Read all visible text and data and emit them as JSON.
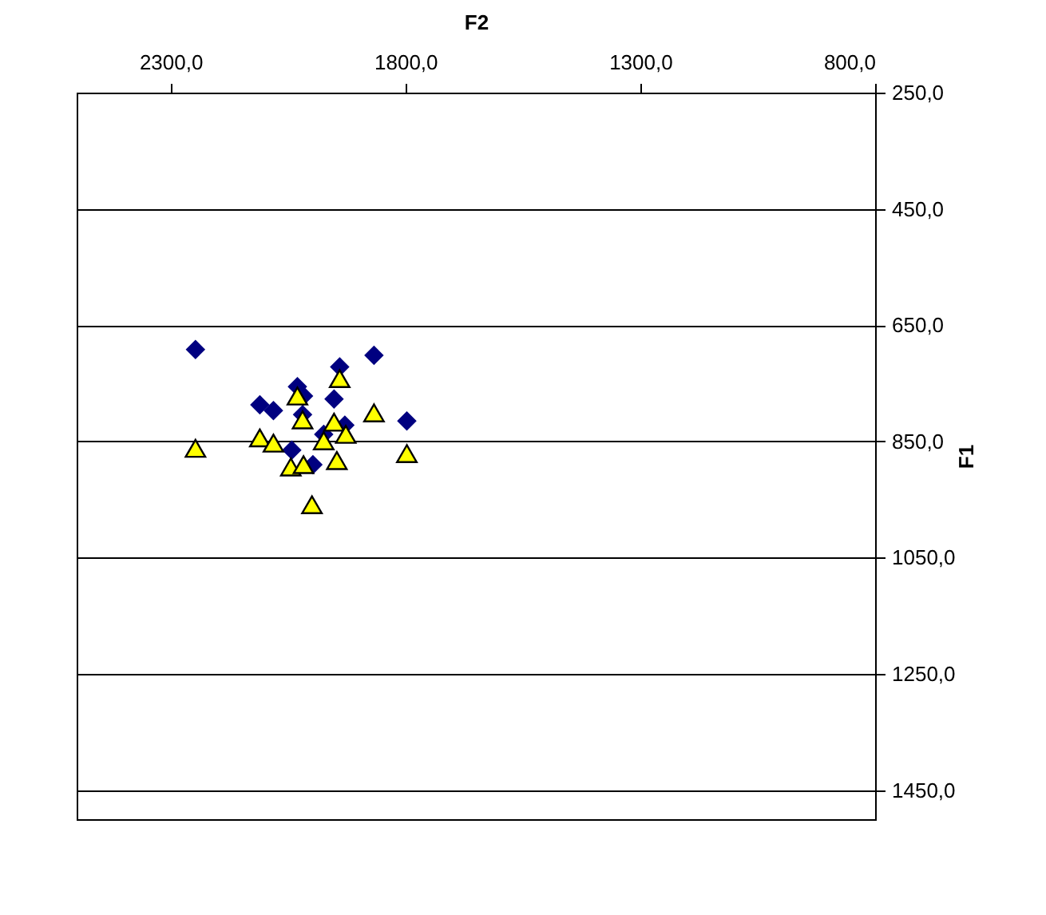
{
  "chart_data": {
    "type": "scatter",
    "xlabel": "F2",
    "ylabel": "F1",
    "xlim": [
      2500,
      800
    ],
    "xticks": [
      {
        "value": 2300,
        "label": "2300,0"
      },
      {
        "value": 1800,
        "label": "1800,0"
      },
      {
        "value": 1300,
        "label": "1300,0"
      },
      {
        "value": 800,
        "label": "800,0"
      }
    ],
    "ylim": [
      1500,
      250
    ],
    "yticks": [
      {
        "value": 250,
        "label": "250,0"
      },
      {
        "value": 450,
        "label": "450,0"
      },
      {
        "value": 650,
        "label": "650,0"
      },
      {
        "value": 850,
        "label": "850,0"
      },
      {
        "value": 1050,
        "label": "1050,0"
      },
      {
        "value": 1250,
        "label": "1250,0"
      },
      {
        "value": 1450,
        "label": "1450,0"
      }
    ],
    "grid": "y",
    "series": [
      {
        "marker": "diamond",
        "color": "#000080",
        "x": [
          2247,
          1867,
          1940,
          2030,
          1952,
          2110,
          2081,
          2019,
          1929,
          1797,
          1974,
          2042,
          1997,
          2017
        ],
        "values": [
          692,
          702,
          722,
          756,
          777,
          787,
          797,
          804,
          822,
          815,
          838,
          865,
          890,
          772
        ]
      },
      {
        "marker": "triangle",
        "color": "#ffff00",
        "x": [
          2247,
          1940,
          2030,
          2019,
          1867,
          2110,
          2081,
          1952,
          1927,
          1974,
          1797,
          2044,
          2017,
          1946,
          1999
        ],
        "values": [
          862,
          742,
          772,
          813,
          801,
          844,
          853,
          817,
          838,
          849,
          871,
          894,
          890,
          883,
          959
        ]
      }
    ]
  }
}
